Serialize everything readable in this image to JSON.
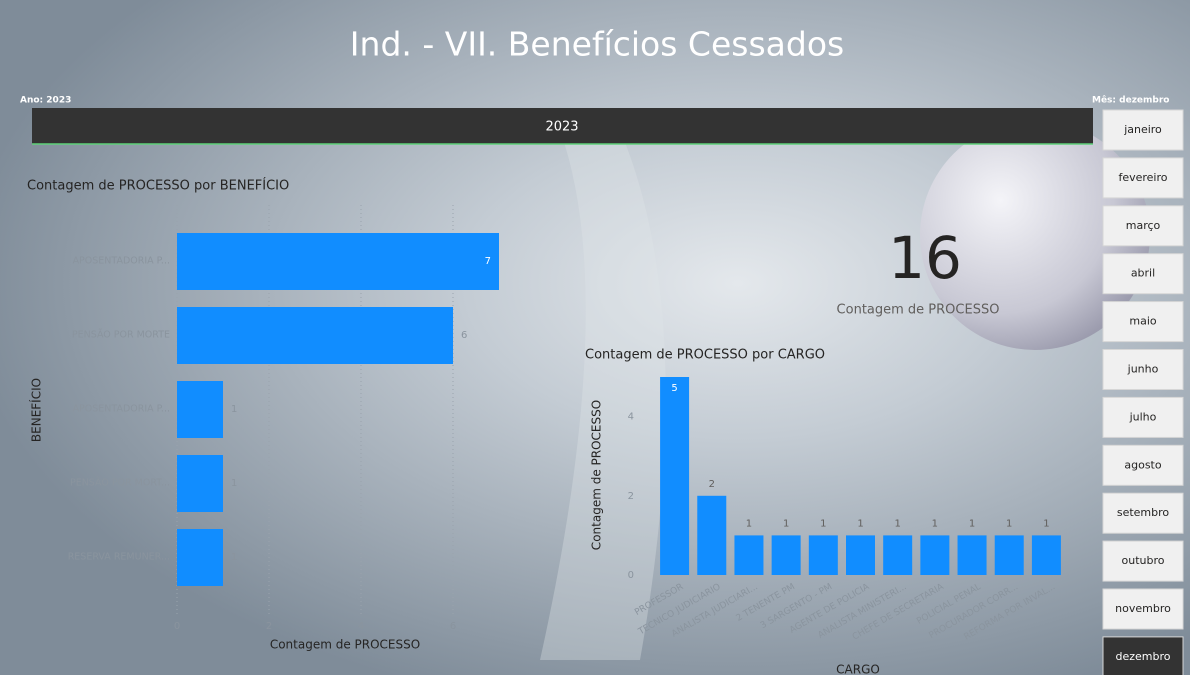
{
  "header": {
    "title": "Ind. - VII. Benefícios Cessados",
    "year_filter": "Ano: 2023",
    "month_filter": "Mês: dezembro"
  },
  "year_slicer": {
    "items": [
      "2023"
    ]
  },
  "month_slicer": {
    "items": [
      "janeiro",
      "fevereiro",
      "março",
      "abril",
      "maio",
      "junho",
      "julho",
      "agosto",
      "setembro",
      "outubro",
      "novembro",
      "dezembro"
    ],
    "selected": "dezembro"
  },
  "card": {
    "value": 16,
    "label": "Contagem de PROCESSO"
  },
  "chart_data": [
    {
      "type": "hbar",
      "title": "Contagem de PROCESSO por BENEFÍCIO",
      "categories": [
        "APOSENTADORIA P...",
        "PENSÃO POR MORTE",
        "APOSENTADORIA P...",
        "PENSÃO POR MORT...",
        "RESERVA REMUNER..."
      ],
      "values": [
        7,
        6,
        1,
        1,
        1
      ],
      "color": "#118dff",
      "xlim": [
        0,
        7
      ],
      "xticks": [
        0,
        2,
        4,
        6
      ],
      "grid": true,
      "x_label": "Contagem de PROCESSO",
      "y_label": "BENEFÍCIO"
    },
    {
      "type": "bar",
      "title": "Contagem de PROCESSO por CARGO",
      "categories": [
        "PROFESSOR",
        "TECNICO JUDICIARIO",
        "ANALISTA JUDICIARI...",
        "2 TENENTE PM",
        "3 SARGENTO - PM",
        "AGENTE DE POLICIA",
        "ANALISTA MINISTERI...",
        "CHEFE DE SECRETARIA",
        "POLICIAL PENAL",
        "PROCURADOR CORR...",
        "REFORMA POR INVAL..."
      ],
      "values": [
        5,
        2,
        1,
        1,
        1,
        1,
        1,
        1,
        1,
        1,
        1
      ],
      "color": "#118dff",
      "ylim": [
        0,
        5
      ],
      "yticks": [
        0,
        2,
        4
      ],
      "grid": false,
      "x_label": "CARGO",
      "y_label": "Contagem de PROCESSO"
    }
  ]
}
